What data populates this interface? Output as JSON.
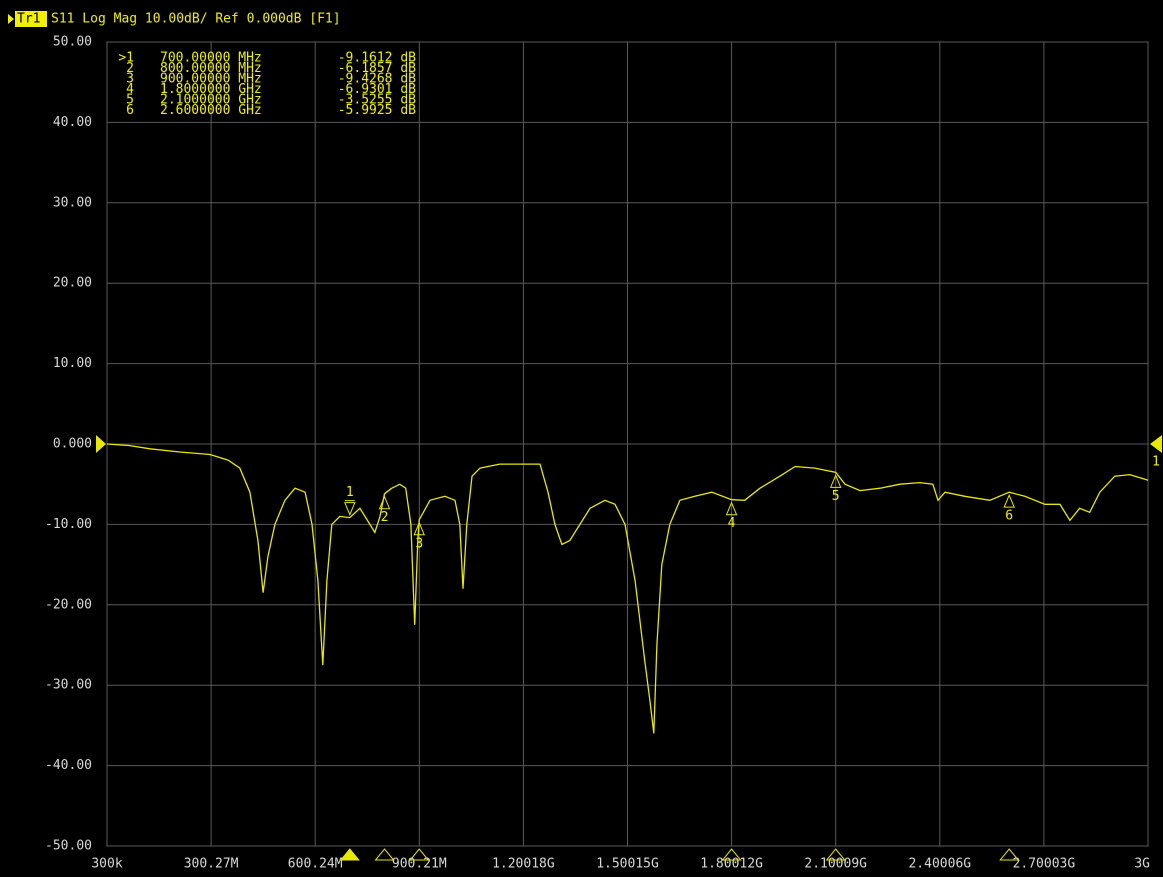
{
  "chart_data": {
    "type": "line",
    "trace": "Tr1",
    "title": "S11 Log Mag 10.00dB/ Ref 0.000dB [F1]",
    "color": "#e8e800",
    "grid": true,
    "xlim": [
      0.3,
      3000
    ],
    "ylim": [
      -50,
      50
    ],
    "yticks": [
      {
        "value": 50,
        "label": "50.00"
      },
      {
        "value": 40,
        "label": "40.00"
      },
      {
        "value": 30,
        "label": "30.00"
      },
      {
        "value": 20,
        "label": "20.00"
      },
      {
        "value": 10,
        "label": "10.00"
      },
      {
        "value": 0,
        "label": "0.000"
      },
      {
        "value": -10,
        "label": "-10.00"
      },
      {
        "value": -20,
        "label": "-20.00"
      },
      {
        "value": -30,
        "label": "-30.00"
      },
      {
        "value": -40,
        "label": "-40.00"
      },
      {
        "value": -50,
        "label": "-50.00"
      }
    ],
    "xticks": [
      {
        "value": 0.3,
        "label": "300k"
      },
      {
        "value": 300.27,
        "label": "300.27M"
      },
      {
        "value": 600.24,
        "label": "600.24M"
      },
      {
        "value": 900.21,
        "label": "900.21M"
      },
      {
        "value": 1200.18,
        "label": "1.20018G"
      },
      {
        "value": 1500.15,
        "label": "1.50015G"
      },
      {
        "value": 1800.12,
        "label": "1.80012G"
      },
      {
        "value": 2100.09,
        "label": "2.10009G"
      },
      {
        "value": 2400.06,
        "label": "2.40006G"
      },
      {
        "value": 2700.03,
        "label": "2.70003G"
      },
      {
        "value": 3000,
        "label": "3G"
      }
    ],
    "right_label": "1",
    "series": [
      {
        "name": "S11",
        "x": [
          0.3,
          66,
          124,
          210,
          297,
          349,
          383,
          412,
          435,
          450,
          464,
          484,
          513,
          542,
          571,
          591,
          608,
          622,
          634,
          648,
          671,
          700,
          729,
          758,
          772,
          787,
          800,
          821,
          844,
          861,
          876,
          887,
          896,
          900,
          931,
          974,
          1003,
          1017,
          1026,
          1037,
          1052,
          1075,
          1132,
          1248,
          1271,
          1291,
          1311,
          1334,
          1363,
          1392,
          1435,
          1464,
          1493,
          1522,
          1550,
          1565,
          1576,
          1585,
          1599,
          1622,
          1651,
          1694,
          1743,
          1800,
          1838,
          1882,
          1939,
          1983,
          2040,
          2100,
          2127,
          2170,
          2228,
          2285,
          2343,
          2380,
          2395,
          2415,
          2472,
          2544,
          2600,
          2645,
          2703,
          2746,
          2775,
          2803,
          2832,
          2861,
          2904,
          2947,
          3000
        ],
        "values": [
          0,
          -0.2,
          -0.6,
          -1,
          -1.3,
          -2,
          -3,
          -6,
          -12,
          -18.5,
          -14,
          -10,
          -7,
          -5.5,
          -6,
          -10,
          -17,
          -27.5,
          -17,
          -10,
          -9,
          -9.16,
          -8,
          -10,
          -11,
          -9,
          -6.19,
          -5.5,
          -5,
          -5.5,
          -10,
          -22.5,
          -12,
          -9.43,
          -7,
          -6.5,
          -7,
          -10,
          -18,
          -10,
          -4,
          -3,
          -2.5,
          -2.5,
          -6,
          -10,
          -12.5,
          -12,
          -10,
          -8,
          -7,
          -7.5,
          -10,
          -17,
          -27,
          -32,
          -36,
          -25,
          -15,
          -10,
          -7,
          -6.5,
          -6,
          -6.93,
          -7,
          -5.5,
          -4,
          -2.8,
          -3,
          -3.53,
          -5,
          -5.8,
          -5.5,
          -5,
          -4.8,
          -5,
          -7,
          -6,
          -6.5,
          -7,
          -5.99,
          -6.5,
          -7.5,
          -7.5,
          -9.5,
          -8,
          -8.5,
          -6,
          -4,
          -3.8,
          -4.5
        ]
      }
    ],
    "markers": {
      "table_ids": [
        ">1",
        "2",
        "3",
        "4",
        "5",
        "6"
      ],
      "numbers": [
        "1",
        "2",
        "3",
        "4",
        "5",
        "6"
      ],
      "freqs": [
        700,
        800,
        900,
        1800,
        2100,
        2600
      ],
      "freq_labels": [
        "700.00000 MHz",
        "800.00000 MHz",
        "900.00000 MHz",
        "1.8000000 GHz",
        "2.1000000 GHz",
        "2.6000000 GHz"
      ],
      "values": [
        -9.1612,
        -6.1857,
        -9.4268,
        -6.9301,
        -3.5255,
        -5.9925
      ],
      "value_labels": [
        "-9.1612 dB",
        "-6.1857 dB",
        "-9.4268 dB",
        "-6.9301 dB",
        "-3.5255 dB",
        "-5.9925 dB"
      ]
    }
  }
}
